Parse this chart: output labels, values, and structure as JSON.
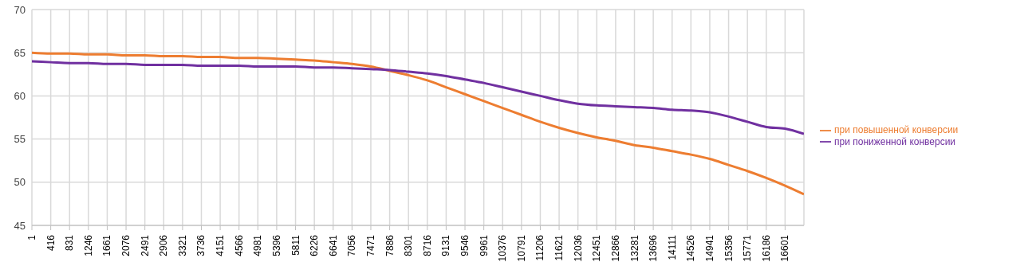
{
  "chart_data": {
    "type": "line",
    "x": [
      1,
      416,
      831,
      1246,
      1661,
      2076,
      2491,
      2906,
      3321,
      3736,
      4151,
      4566,
      4981,
      5396,
      5811,
      6226,
      6641,
      7056,
      7471,
      7886,
      8301,
      8716,
      9131,
      9546,
      9961,
      10376,
      10791,
      11206,
      11621,
      12036,
      12451,
      12866,
      13281,
      13696,
      14111,
      14526,
      14941,
      15356,
      15771,
      16186,
      16601,
      17016
    ],
    "series": [
      {
        "name": "при повышенной конверсии",
        "color": "#ed7d31",
        "values": [
          65.0,
          64.9,
          64.9,
          64.8,
          64.8,
          64.7,
          64.7,
          64.6,
          64.6,
          64.5,
          64.5,
          64.4,
          64.4,
          64.3,
          64.2,
          64.1,
          63.9,
          63.7,
          63.4,
          62.9,
          62.4,
          61.8,
          61.0,
          60.2,
          59.4,
          58.6,
          57.8,
          57.0,
          56.3,
          55.7,
          55.2,
          54.8,
          54.3,
          54.0,
          53.6,
          53.2,
          52.7,
          52.0,
          51.3,
          50.5,
          49.6,
          48.6
        ]
      },
      {
        "name": "при пониженной конверсии",
        "color": "#7030a0",
        "values": [
          64.0,
          63.9,
          63.8,
          63.8,
          63.7,
          63.7,
          63.6,
          63.6,
          63.6,
          63.5,
          63.5,
          63.5,
          63.4,
          63.4,
          63.4,
          63.3,
          63.3,
          63.2,
          63.1,
          63.0,
          62.8,
          62.6,
          62.3,
          61.9,
          61.5,
          61.0,
          60.5,
          60.0,
          59.5,
          59.1,
          58.9,
          58.8,
          58.7,
          58.6,
          58.4,
          58.3,
          58.1,
          57.6,
          57.0,
          56.4,
          56.2,
          55.6
        ]
      }
    ],
    "xlim": [
      1,
      17016
    ],
    "xticks": [
      1,
      416,
      831,
      1246,
      1661,
      2076,
      2491,
      2906,
      3321,
      3736,
      4151,
      4566,
      4981,
      5396,
      5811,
      6226,
      6641,
      7056,
      7471,
      7886,
      8301,
      8716,
      9131,
      9546,
      9961,
      10376,
      10791,
      11206,
      11621,
      12036,
      12451,
      12866,
      13281,
      13696,
      14111,
      14526,
      14941,
      15356,
      15771,
      16186,
      16601
    ],
    "ylim": [
      45,
      70
    ],
    "yticks": [
      45,
      50,
      55,
      60,
      65,
      70
    ],
    "grid": true,
    "legend": "right",
    "marker": "none",
    "line_style": "solid"
  }
}
